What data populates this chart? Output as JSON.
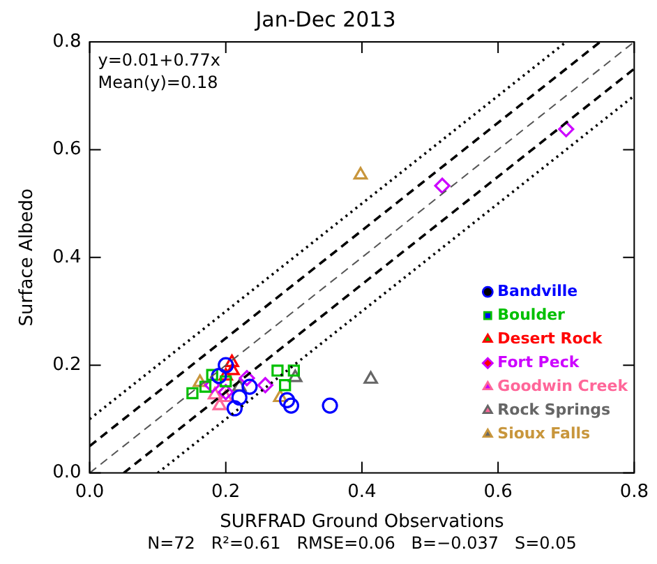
{
  "chart_data": {
    "type": "scatter",
    "title": "Jan-Dec 2013",
    "xlabel": "SURFRAD Ground Observations",
    "ylabel": "Surface Albedo",
    "xlim": [
      0,
      0.8
    ],
    "ylim": [
      0,
      0.8
    ],
    "xticks": [
      {
        "value": 0,
        "label": "0.0"
      },
      {
        "value": 0.2,
        "label": "0.2"
      },
      {
        "value": 0.4,
        "label": "0.4"
      },
      {
        "value": 0.6,
        "label": "0.6"
      },
      {
        "value": 0.8,
        "label": "0.8"
      }
    ],
    "yticks": [
      {
        "value": 0,
        "label": "0.0"
      },
      {
        "value": 0.2,
        "label": "0.2"
      },
      {
        "value": 0.4,
        "label": "0.4"
      },
      {
        "value": 0.6,
        "label": "0.6"
      },
      {
        "value": 0.8,
        "label": "0.8"
      }
    ],
    "grid": false,
    "legend": "right",
    "annotations": [
      "y=0.01+0.77x",
      "Mean(y)=0.18",
      "N=72   R²=0.61   RMSE=0.06   B=−0.037   S=0.05"
    ],
    "series": [
      {
        "type": "line",
        "color": "#000000",
        "line_style": "dotted",
        "marker": "none",
        "x": [
          0,
          0.7
        ],
        "values": [
          0.1,
          0.8
        ]
      },
      {
        "type": "line",
        "color": "#000000",
        "line_style": "dashed",
        "marker": "none",
        "x": [
          0,
          0.75
        ],
        "values": [
          0.05,
          0.8
        ]
      },
      {
        "type": "line",
        "color": "#555555",
        "line_style": "dashed",
        "marker": "none",
        "x": [
          0,
          0.8
        ],
        "values": [
          0,
          0.8
        ]
      },
      {
        "type": "line",
        "color": "#000000",
        "line_style": "dashed",
        "marker": "none",
        "x": [
          0.05,
          0.8
        ],
        "values": [
          0,
          0.75
        ]
      },
      {
        "type": "line",
        "color": "#000000",
        "line_style": "dotted",
        "marker": "none",
        "x": [
          0.1,
          0.8
        ],
        "values": [
          0,
          0.7
        ]
      },
      {
        "name": "Bandville",
        "color": "#0000ff",
        "marker": "circle",
        "x": [
          0.353,
          0.296,
          0.213,
          0.2,
          0.235,
          0.29,
          0.22,
          0.19
        ],
        "values": [
          0.125,
          0.125,
          0.12,
          0.2,
          0.16,
          0.135,
          0.14,
          0.18
        ]
      },
      {
        "name": "Boulder",
        "color": "#00c000",
        "marker": "square",
        "x": [
          0.276,
          0.287,
          0.151,
          0.18,
          0.17,
          0.2,
          0.3
        ],
        "values": [
          0.19,
          0.163,
          0.148,
          0.182,
          0.16,
          0.17,
          0.19
        ]
      },
      {
        "name": "Desert Rock",
        "color": "#ff0000",
        "marker": "triangle",
        "x": [
          0.209,
          0.21,
          0.2
        ],
        "values": [
          0.205,
          0.19,
          0.18
        ]
      },
      {
        "name": "Fort Peck",
        "color": "#cc00ff",
        "marker": "diamond",
        "x": [
          0.518,
          0.7,
          0.258,
          0.231,
          0.18,
          0.2
        ],
        "values": [
          0.533,
          0.638,
          0.163,
          0.176,
          0.163,
          0.15
        ]
      },
      {
        "name": "Goodwin Creek",
        "color": "#ff6699",
        "marker": "triangle",
        "x": [
          0.191,
          0.184,
          0.2
        ],
        "values": [
          0.125,
          0.145,
          0.14
        ]
      },
      {
        "name": "Rock Springs",
        "color": "#666666",
        "marker": "triangle",
        "x": [
          0.413,
          0.302,
          0.22
        ],
        "values": [
          0.174,
          0.177,
          0.16
        ]
      },
      {
        "name": "Sioux Falls",
        "color": "#c8963c",
        "marker": "triangle",
        "x": [
          0.398,
          0.28,
          0.162
        ],
        "values": [
          0.553,
          0.14,
          0.168
        ]
      }
    ]
  }
}
